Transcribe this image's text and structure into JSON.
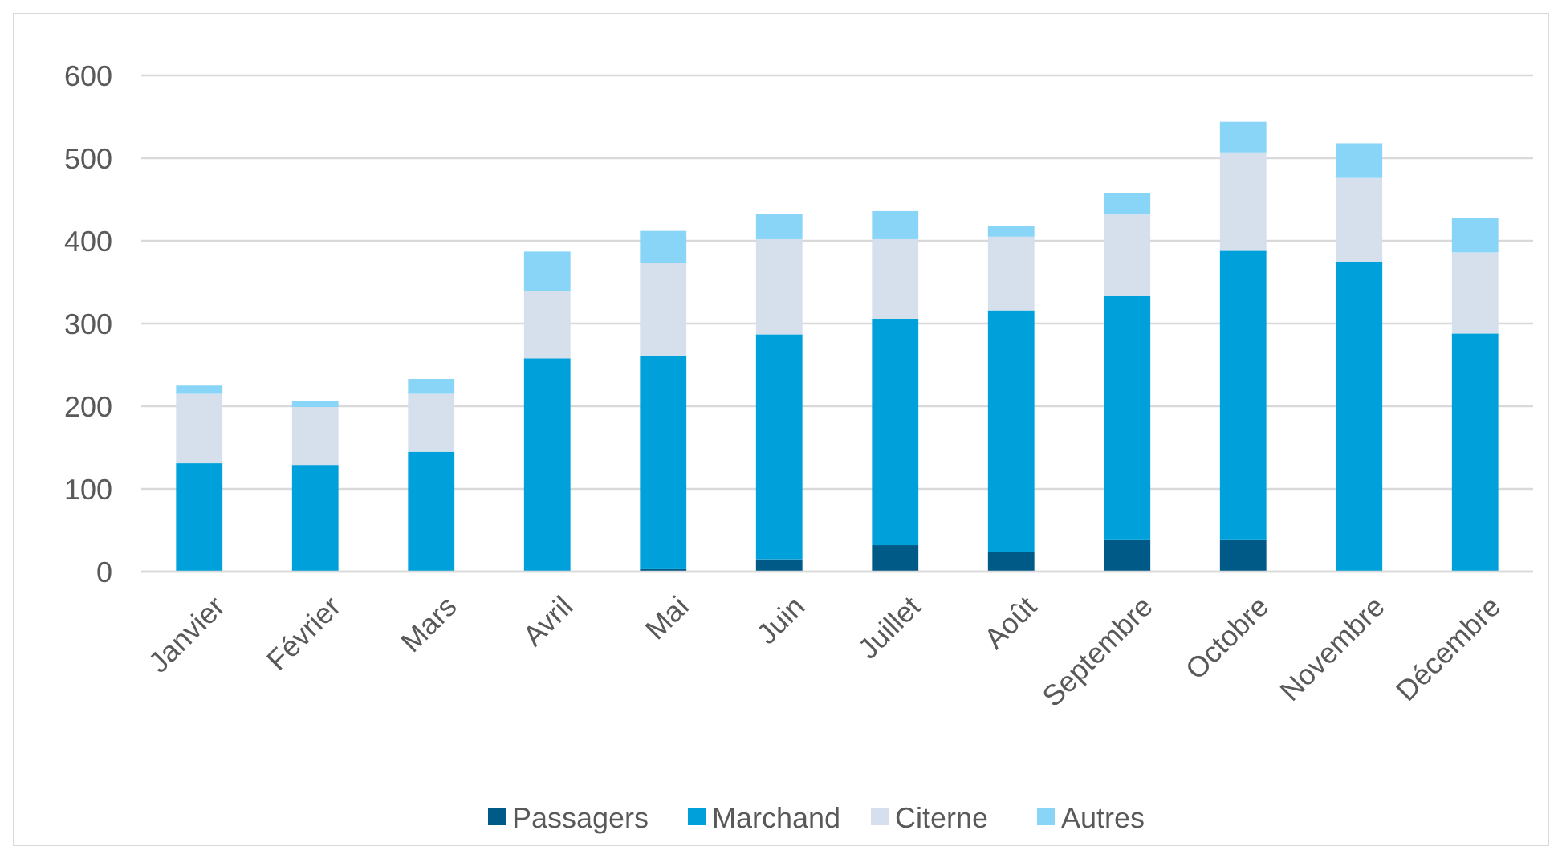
{
  "chart_data": {
    "type": "bar",
    "stacked": true,
    "categories": [
      "Janvier",
      "Février",
      "Mars",
      "Avril",
      "Mai",
      "Juin",
      "Juillet",
      "Août",
      "Septembre",
      "Octobre",
      "Novembre",
      "Décembre"
    ],
    "series": [
      {
        "name": "Passagers",
        "color": "#005a87",
        "values": [
          0,
          0,
          0,
          1,
          3,
          15,
          32,
          24,
          38,
          38,
          0,
          0
        ]
      },
      {
        "name": "Marchand",
        "color": "#00a1db",
        "values": [
          131,
          129,
          145,
          257,
          258,
          272,
          274,
          292,
          295,
          350,
          375,
          288
        ]
      },
      {
        "name": "Citerne",
        "color": "#d5e0ec",
        "values": [
          84,
          70,
          70,
          81,
          112,
          115,
          96,
          89,
          99,
          119,
          101,
          98
        ]
      },
      {
        "name": "Autres",
        "color": "#89d5f8",
        "values": [
          10,
          7,
          18,
          48,
          39,
          31,
          34,
          13,
          26,
          37,
          42,
          42
        ]
      }
    ],
    "ylim": [
      0,
      600
    ],
    "yticks": [
      0,
      100,
      200,
      300,
      400,
      500,
      600
    ],
    "grid": true,
    "legend": "bottom"
  }
}
